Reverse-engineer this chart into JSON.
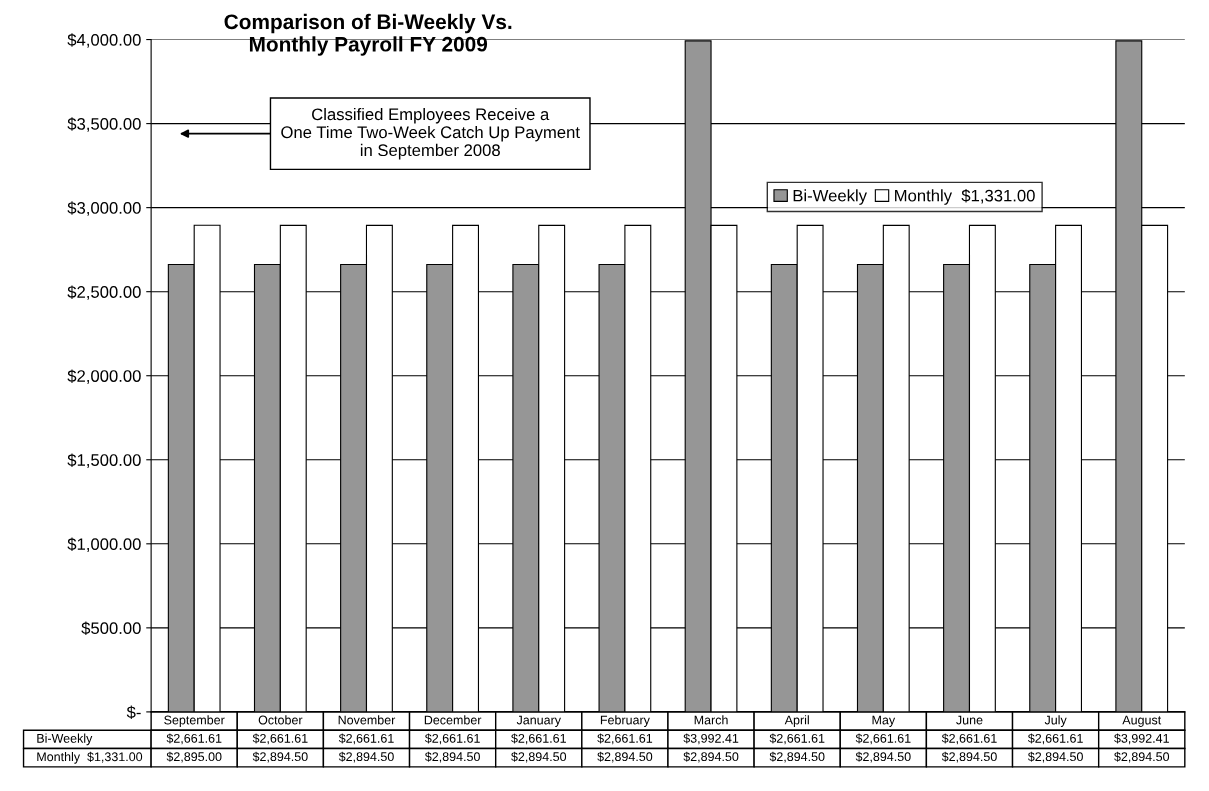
{
  "chart_data": {
    "type": "bar",
    "title": "Comparison of Bi-Weekly Vs.\nMonthly Payroll FY 2009",
    "categories": [
      "September",
      "October",
      "November",
      "December",
      "January",
      "February",
      "March",
      "April",
      "May",
      "June",
      "July",
      "August"
    ],
    "series": [
      {
        "name": "Bi-Weekly",
        "color": "#969696",
        "values": [
          2661.61,
          2661.61,
          2661.61,
          2661.61,
          2661.61,
          2661.61,
          3992.41,
          2661.61,
          2661.61,
          2661.61,
          2661.61,
          3992.41
        ],
        "value_labels": [
          "$2,661.61",
          "$2,661.61",
          "$2,661.61",
          "$2,661.61",
          "$2,661.61",
          "$2,661.61",
          "$3,992.41",
          "$2,661.61",
          "$2,661.61",
          "$2,661.61",
          "$2,661.61",
          "$3,992.41"
        ]
      },
      {
        "name": "Monthly  $1,331.00",
        "color": "#ffffff",
        "values": [
          2895.0,
          2894.5,
          2894.5,
          2894.5,
          2894.5,
          2894.5,
          2894.5,
          2894.5,
          2894.5,
          2894.5,
          2894.5,
          2894.5
        ],
        "value_labels": [
          "$2,895.00",
          "$2,894.50",
          "$2,894.50",
          "$2,894.50",
          "$2,894.50",
          "$2,894.50",
          "$2,894.50",
          "$2,894.50",
          "$2,894.50",
          "$2,894.50",
          "$2,894.50",
          "$2,894.50"
        ]
      }
    ],
    "ylim": [
      0,
      4000
    ],
    "yticks": [
      {
        "value": 0,
        "label": "$-"
      },
      {
        "value": 500,
        "label": "$500.00"
      },
      {
        "value": 1000,
        "label": "$1,000.00"
      },
      {
        "value": 1500,
        "label": "$1,500.00"
      },
      {
        "value": 2000,
        "label": "$2,000.00"
      },
      {
        "value": 2500,
        "label": "$2,500.00"
      },
      {
        "value": 3000,
        "label": "$3,000.00"
      },
      {
        "value": 3500,
        "label": "$3,500.00"
      },
      {
        "value": 4000,
        "label": "$4,000.00"
      }
    ],
    "grid": "y",
    "legend": "top right",
    "annotations": [
      "Classified Employees Receive a\nOne Time Two-Week Catch Up Payment\nin September 2008"
    ]
  }
}
